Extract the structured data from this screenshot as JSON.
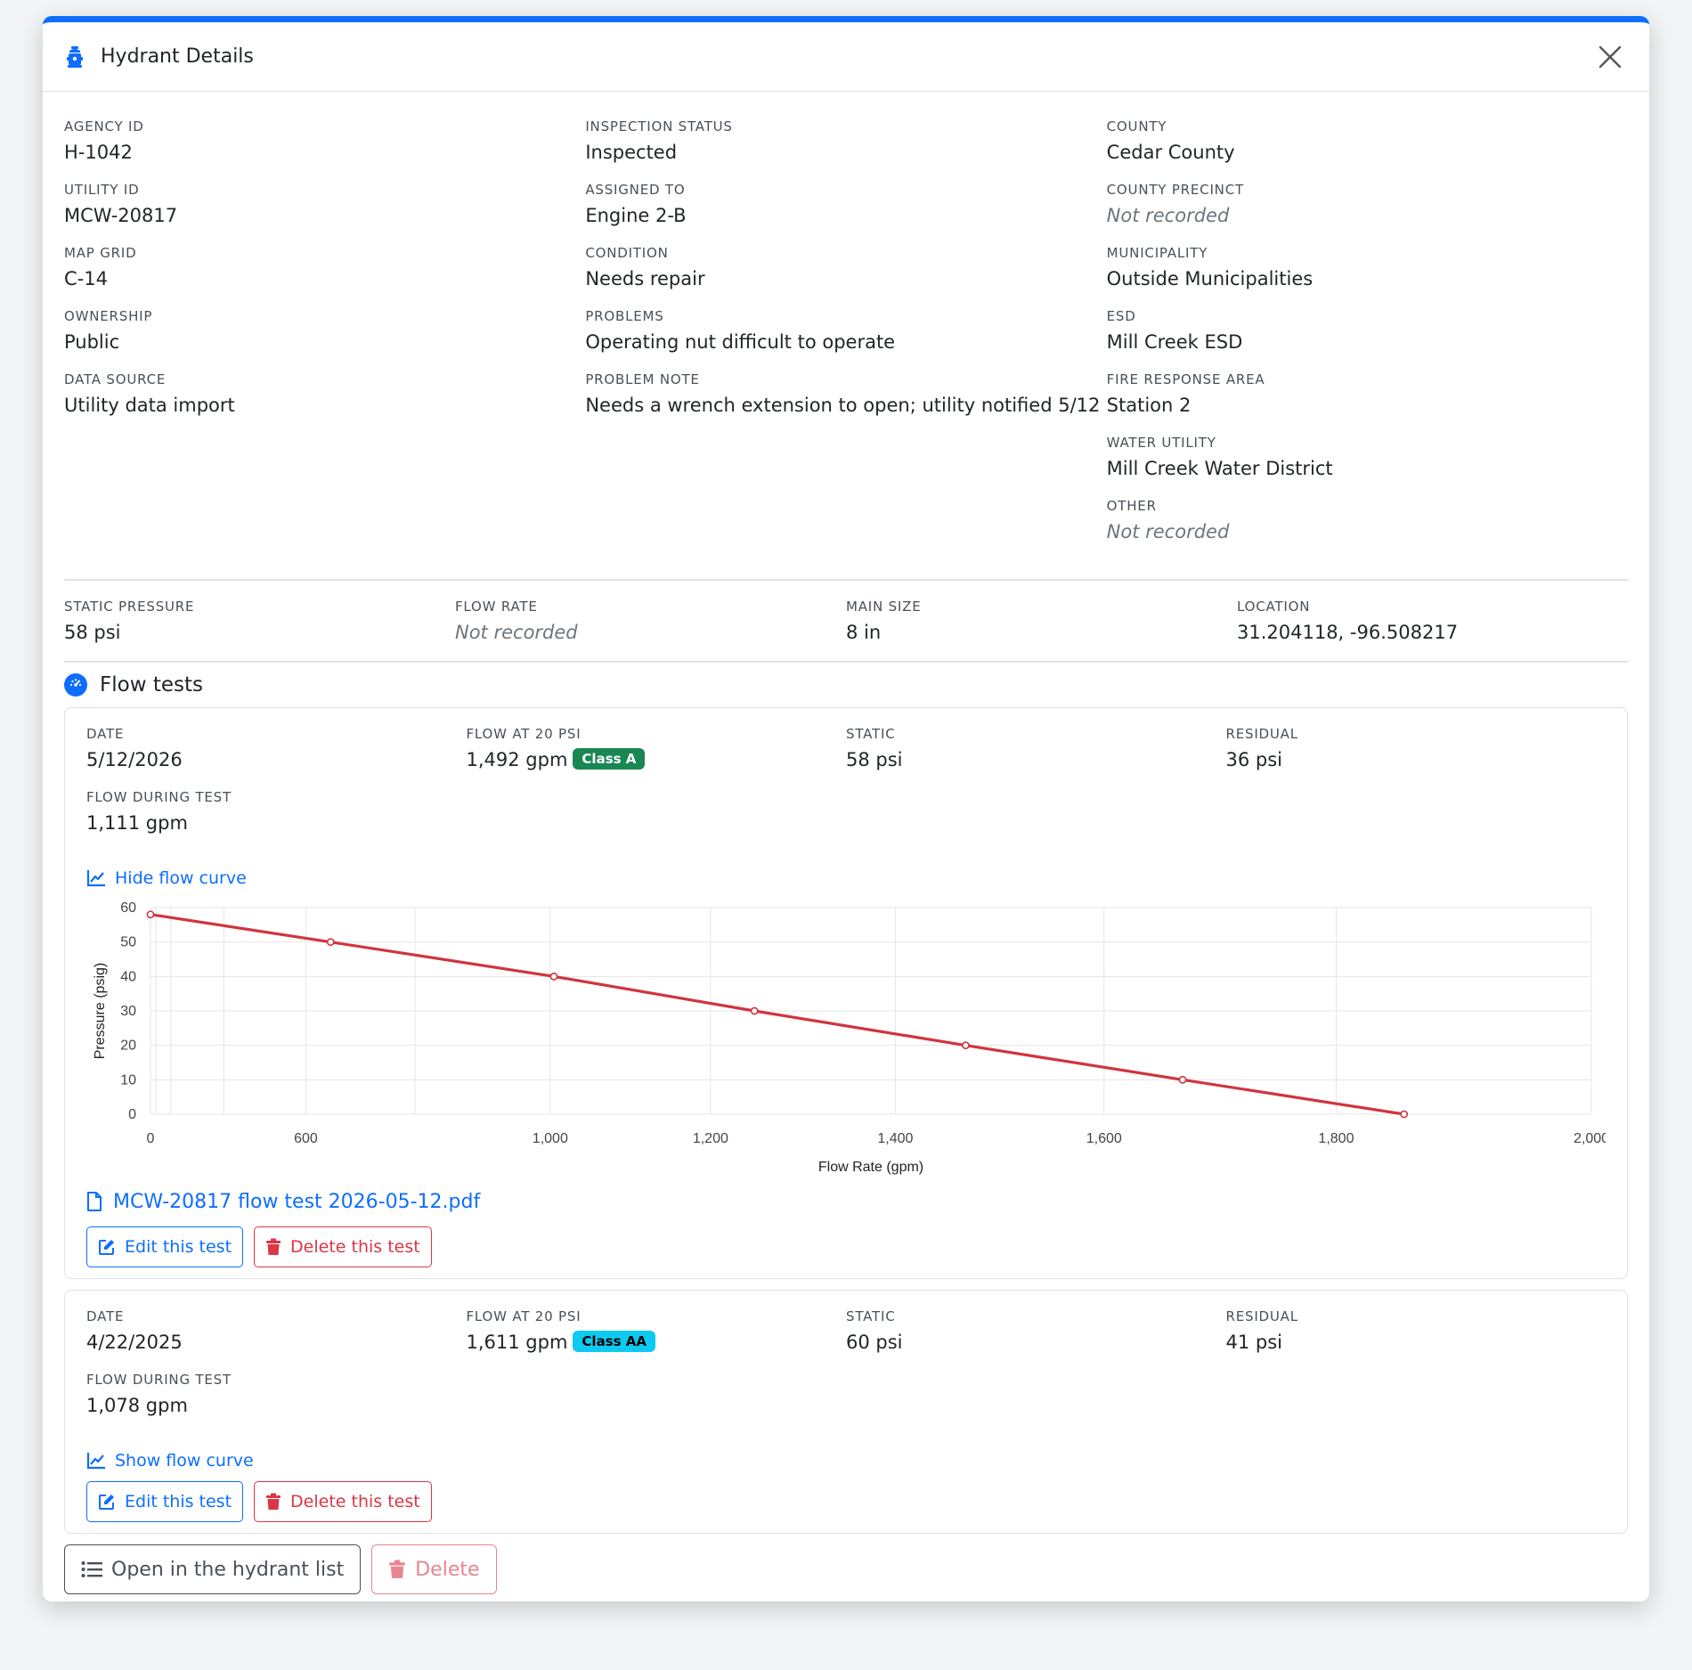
{
  "modal": {
    "title": "Hydrant Details",
    "icon": "fire-hydrant-icon",
    "close_icon": "close-icon"
  },
  "info": {
    "col1": [
      {
        "label": "AGENCY ID",
        "value": "H-1042"
      },
      {
        "label": "UTILITY ID",
        "value": "MCW-20817"
      },
      {
        "label": "MAP GRID",
        "value": "C-14"
      },
      {
        "label": "OWNERSHIP",
        "value": "Public"
      },
      {
        "label": "DATA SOURCE",
        "value": "Utility data import"
      }
    ],
    "col2": [
      {
        "label": "INSPECTION STATUS",
        "value": "Inspected"
      },
      {
        "label": "ASSIGNED TO",
        "value": "Engine 2-B"
      },
      {
        "label": "CONDITION",
        "value": "Needs repair"
      },
      {
        "label": "PROBLEMS",
        "value": "Operating nut difficult to operate"
      },
      {
        "label": "PROBLEM NOTE",
        "value": "Needs a wrench extension to open; utility notified 5/12"
      }
    ],
    "col3": [
      {
        "label": "COUNTY",
        "value": "Cedar County"
      },
      {
        "label": "COUNTY PRECINCT",
        "value": "Not recorded"
      },
      {
        "label": "MUNICIPALITY",
        "value": "Outside Municipalities"
      },
      {
        "label": "ESD",
        "value": "Mill Creek ESD"
      },
      {
        "label": "FIRE RESPONSE AREA",
        "value": "Station 2"
      },
      {
        "label": "WATER UTILITY",
        "value": "Mill Creek Water District"
      },
      {
        "label": "OTHER",
        "value": "Not recorded"
      }
    ]
  },
  "quick": [
    {
      "label": "STATIC PRESSURE",
      "value": "58 psi"
    },
    {
      "label": "FLOW RATE",
      "value": "Not recorded"
    },
    {
      "label": "MAIN SIZE",
      "value": "8 in"
    },
    {
      "label": "LOCATION",
      "value": "31.204118, -96.508217"
    }
  ],
  "flow_tests": {
    "title": "Flow tests",
    "tests": [
      {
        "date_label": "DATE",
        "date": "5/12/2026",
        "flow20_label": "FLOW AT 20 PSI",
        "flow20": "1,492 gpm",
        "class": "Class A",
        "static_label": "STATIC",
        "static": "58 psi",
        "residual_label": "RESIDUAL",
        "residual": "36 psi",
        "flow_during_label": "FLOW DURING TEST",
        "flow_during": "1,111 gpm",
        "curve_toggle": "Hide flow curve",
        "pdf": "MCW-20817 flow test 2026-05-12.pdf",
        "edit_label": "Edit this test",
        "delete_label": "Delete this test"
      },
      {
        "date_label": "DATE",
        "date": "4/22/2025",
        "flow20_label": "FLOW AT 20 PSI",
        "flow20": "1,611 gpm",
        "class": "Class AA",
        "static_label": "STATIC",
        "static": "60 psi",
        "residual_label": "RESIDUAL",
        "residual": "41 psi",
        "flow_during_label": "FLOW DURING TEST",
        "flow_during": "1,078 gpm",
        "curve_toggle": "Show flow curve",
        "edit_label": "Edit this test",
        "delete_label": "Delete this test"
      }
    ]
  },
  "footer": {
    "open_list_label": "Open in the hydrant list",
    "delete_label": "Delete"
  },
  "colors": {
    "accent": "#0d6efd",
    "danger": "#dc3545",
    "curve": "#d1343f",
    "class_a": "#198754",
    "class_aa": "#0dcaf0"
  },
  "chart_data": {
    "type": "line",
    "xlabel": "Flow Rate (gpm)",
    "ylabel": "Pressure (psig)",
    "x_ticks": [
      "0",
      "600",
      "1,000",
      "1,200",
      "1,400",
      "1,600",
      "1,800",
      "2,000"
    ],
    "y_ticks": [
      "0",
      "10",
      "20",
      "30",
      "40",
      "50",
      "60"
    ],
    "ylim": [
      0,
      60
    ],
    "scale_note": "x axis uses N^1.85 scaling (hydraulic graph paper)",
    "series": [
      {
        "points": [
          {
            "x": 0,
            "y": 58
          },
          {
            "x": 650,
            "y": 50
          },
          {
            "x": 1005,
            "y": 40
          },
          {
            "x": 1250,
            "y": 30
          },
          {
            "x": 1470,
            "y": 20
          },
          {
            "x": 1670,
            "y": 10
          },
          {
            "x": 1855,
            "y": 0
          }
        ]
      }
    ],
    "grid": true
  }
}
